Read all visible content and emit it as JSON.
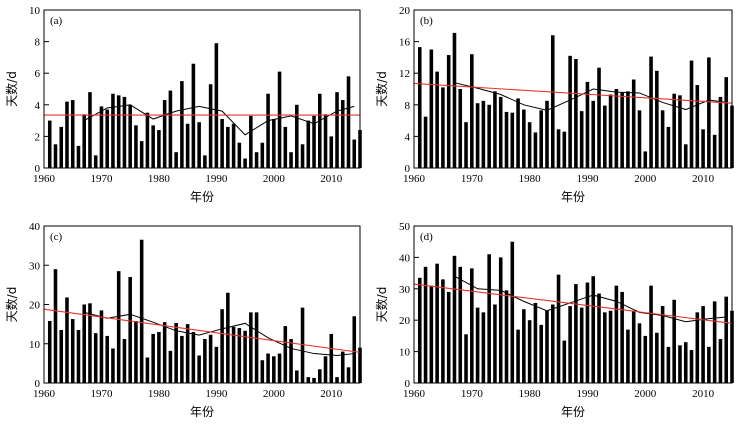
{
  "chart_data": [
    {
      "panel": "(a)",
      "type": "bar",
      "xlabel": "年份",
      "ylabel": "天数/d",
      "xlim": [
        1960,
        2015
      ],
      "ylim": [
        0,
        10
      ],
      "xticks": [
        1960,
        1970,
        1980,
        1990,
        2000,
        2010
      ],
      "yticks": [
        0,
        2,
        4,
        6,
        8,
        10
      ],
      "trend_color": "#e8352a",
      "bar_color": "#000000",
      "moving_average_color": "#000000",
      "x": [
        1961,
        1962,
        1963,
        1964,
        1965,
        1966,
        1967,
        1968,
        1969,
        1970,
        1971,
        1972,
        1973,
        1974,
        1975,
        1976,
        1977,
        1978,
        1979,
        1980,
        1981,
        1982,
        1983,
        1984,
        1985,
        1986,
        1987,
        1988,
        1989,
        1990,
        1991,
        1992,
        1993,
        1994,
        1995,
        1996,
        1997,
        1998,
        1999,
        2000,
        2001,
        2002,
        2003,
        2004,
        2005,
        2006,
        2007,
        2008,
        2009,
        2010,
        2011,
        2012,
        2013,
        2014,
        2015
      ],
      "values": [
        3.0,
        1.5,
        2.6,
        4.2,
        4.3,
        1.4,
        3.4,
        4.8,
        0.8,
        3.9,
        3.7,
        4.7,
        4.6,
        4.5,
        4.0,
        2.7,
        1.7,
        3.5,
        2.7,
        2.4,
        4.3,
        4.9,
        1.0,
        5.5,
        2.8,
        6.6,
        2.9,
        0.8,
        5.3,
        7.9,
        3.1,
        2.6,
        2.8,
        1.6,
        0.6,
        3.3,
        1.0,
        1.6,
        4.7,
        3.1,
        6.1,
        2.6,
        1.0,
        4.0,
        1.5,
        3.0,
        3.3,
        4.7,
        3.4,
        2.0,
        4.8,
        4.3,
        5.8,
        1.8,
        2.4
      ],
      "moving_average": {
        "x": [
          1967,
          1971,
          1975,
          1979,
          1983,
          1987,
          1991,
          1995,
          1999,
          2003,
          2007,
          2011,
          2014
        ],
        "values": [
          3.0,
          3.8,
          4.0,
          3.1,
          3.6,
          3.9,
          3.6,
          2.1,
          3.0,
          3.3,
          2.8,
          3.6,
          3.9
        ]
      },
      "trend": {
        "x": [
          1960,
          2015
        ],
        "values": [
          3.35,
          3.35
        ]
      }
    },
    {
      "panel": "(b)",
      "type": "bar",
      "xlabel": "年份",
      "ylabel": "天数/d",
      "xlim": [
        1960,
        2015
      ],
      "ylim": [
        0,
        20
      ],
      "xticks": [
        1960,
        1970,
        1980,
        1990,
        2000,
        2010
      ],
      "yticks": [
        0,
        4,
        8,
        12,
        16,
        20
      ],
      "trend_color": "#e8352a",
      "bar_color": "#000000",
      "moving_average_color": "#000000",
      "x": [
        1961,
        1962,
        1963,
        1964,
        1965,
        1966,
        1967,
        1968,
        1969,
        1970,
        1971,
        1972,
        1973,
        1974,
        1975,
        1976,
        1977,
        1978,
        1979,
        1980,
        1981,
        1982,
        1983,
        1984,
        1985,
        1986,
        1987,
        1988,
        1989,
        1990,
        1991,
        1992,
        1993,
        1994,
        1995,
        1996,
        1997,
        1998,
        1999,
        2000,
        2001,
        2002,
        2003,
        2004,
        2005,
        2006,
        2007,
        2008,
        2009,
        2010,
        2011,
        2012,
        2013,
        2014,
        2015
      ],
      "values": [
        15.3,
        6.5,
        15.0,
        12.2,
        10.2,
        14.3,
        17.1,
        10.0,
        5.8,
        14.4,
        8.2,
        8.5,
        8.0,
        9.7,
        9.0,
        7.1,
        7.0,
        8.8,
        7.4,
        5.8,
        4.5,
        7.3,
        8.5,
        16.8,
        4.9,
        4.6,
        14.2,
        13.8,
        7.2,
        10.9,
        8.5,
        12.7,
        7.9,
        9.3,
        10.0,
        9.6,
        9.7,
        11.2,
        7.3,
        2.1,
        14.1,
        12.3,
        7.3,
        5.2,
        9.4,
        9.2,
        3.0,
        13.6,
        10.5,
        4.9,
        14.0,
        4.2,
        9.0,
        11.5,
        7.9
      ],
      "moving_average": {
        "x": [
          1967,
          1971,
          1975,
          1979,
          1983,
          1987,
          1991,
          1995,
          1999,
          2003,
          2007,
          2011,
          2014
        ],
        "values": [
          10.8,
          10.1,
          9.3,
          8.0,
          7.3,
          8.6,
          10.0,
          9.6,
          9.5,
          8.3,
          7.4,
          8.6,
          8.3
        ]
      },
      "trend": {
        "x": [
          1960,
          2015
        ],
        "values": [
          10.7,
          8.2
        ]
      }
    },
    {
      "panel": "(c)",
      "type": "bar",
      "xlabel": "年份",
      "ylabel": "天数/d",
      "xlim": [
        1960,
        2015
      ],
      "ylim": [
        0,
        40
      ],
      "xticks": [
        1960,
        1970,
        1980,
        1990,
        2000,
        2010
      ],
      "yticks": [
        0,
        10,
        20,
        30,
        40
      ],
      "trend_color": "#e8352a",
      "bar_color": "#000000",
      "moving_average_color": "#000000",
      "x": [
        1961,
        1962,
        1963,
        1964,
        1965,
        1966,
        1967,
        1968,
        1969,
        1970,
        1971,
        1972,
        1973,
        1974,
        1975,
        1976,
        1977,
        1978,
        1979,
        1980,
        1981,
        1982,
        1983,
        1984,
        1985,
        1986,
        1987,
        1988,
        1989,
        1990,
        1991,
        1992,
        1993,
        1994,
        1995,
        1996,
        1997,
        1998,
        1999,
        2000,
        2001,
        2002,
        2003,
        2004,
        2005,
        2006,
        2007,
        2008,
        2009,
        2010,
        2011,
        2012,
        2013,
        2014,
        2015
      ],
      "values": [
        15.8,
        29.0,
        13.5,
        21.8,
        16.3,
        13.5,
        20.0,
        20.3,
        12.7,
        18.5,
        12.0,
        8.8,
        28.5,
        11.2,
        27.0,
        15.8,
        36.5,
        6.5,
        12.5,
        13.0,
        15.5,
        8.2,
        15.3,
        12.0,
        15.0,
        13.0,
        7.0,
        11.2,
        12.3,
        9.2,
        18.8,
        23.0,
        14.3,
        14.0,
        13.3,
        18.0,
        18.0,
        5.8,
        7.5,
        6.8,
        7.5,
        14.5,
        11.2,
        3.2,
        19.2,
        1.5,
        1.3,
        3.5,
        6.8,
        12.5,
        1.5,
        8.0,
        4.0,
        17.0,
        9.0
      ],
      "moving_average": {
        "x": [
          1967,
          1971,
          1975,
          1979,
          1983,
          1987,
          1991,
          1995,
          1999,
          2003,
          2007,
          2011,
          2014
        ],
        "values": [
          18.0,
          16.5,
          17.5,
          15.5,
          13.3,
          12.2,
          13.8,
          15.2,
          11.5,
          8.8,
          7.5,
          7.0,
          7.5
        ]
      },
      "trend": {
        "x": [
          1960,
          2015
        ],
        "values": [
          18.8,
          7.8
        ]
      }
    },
    {
      "panel": "(d)",
      "type": "bar",
      "xlabel": "年份",
      "ylabel": "天数/d",
      "xlim": [
        1960,
        2015
      ],
      "ylim": [
        0,
        50
      ],
      "xticks": [
        1960,
        1970,
        1980,
        1990,
        2000,
        2010
      ],
      "yticks": [
        0,
        10,
        20,
        30,
        40,
        50
      ],
      "trend_color": "#e8352a",
      "bar_color": "#000000",
      "moving_average_color": "#000000",
      "x": [
        1961,
        1962,
        1963,
        1964,
        1965,
        1966,
        1967,
        1968,
        1969,
        1970,
        1971,
        1972,
        1973,
        1974,
        1975,
        1976,
        1977,
        1978,
        1979,
        1980,
        1981,
        1982,
        1983,
        1984,
        1985,
        1986,
        1987,
        1988,
        1989,
        1990,
        1991,
        1992,
        1993,
        1994,
        1995,
        1996,
        1997,
        1998,
        1999,
        2000,
        2001,
        2002,
        2003,
        2004,
        2005,
        2006,
        2007,
        2008,
        2009,
        2010,
        2011,
        2012,
        2013,
        2014,
        2015
      ],
      "values": [
        33.5,
        37.0,
        31.0,
        38.0,
        33.0,
        29.0,
        40.5,
        37.0,
        15.5,
        36.5,
        24.0,
        22.5,
        41.0,
        25.0,
        40.0,
        29.5,
        45.0,
        17.0,
        23.5,
        20.0,
        25.5,
        18.5,
        23.0,
        25.0,
        34.5,
        13.5,
        24.5,
        31.5,
        24.0,
        32.0,
        34.0,
        28.5,
        22.5,
        23.0,
        31.0,
        29.0,
        17.0,
        23.0,
        19.0,
        15.0,
        31.0,
        16.0,
        24.5,
        11.5,
        26.5,
        12.0,
        13.0,
        10.5,
        22.5,
        24.5,
        11.5,
        26.0,
        14.0,
        27.5,
        23.0
      ],
      "moving_average": {
        "x": [
          1967,
          1971,
          1975,
          1979,
          1983,
          1987,
          1991,
          1995,
          1999,
          2003,
          2007,
          2011,
          2014
        ],
        "values": [
          34.0,
          30.0,
          29.5,
          26.0,
          23.0,
          25.5,
          28.0,
          26.0,
          22.5,
          21.5,
          19.5,
          20.5,
          21.0
        ]
      },
      "trend": {
        "x": [
          1960,
          2015
        ],
        "values": [
          31.5,
          19.0
        ]
      }
    }
  ]
}
